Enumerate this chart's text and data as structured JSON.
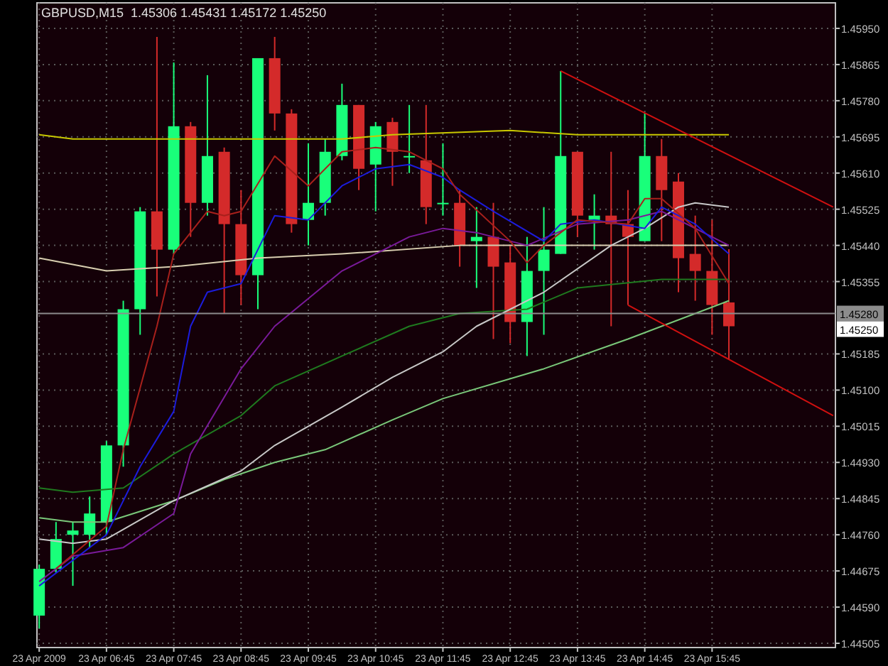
{
  "chart_data": {
    "type": "candlestick",
    "title": "GBPUSD,M15  1.45306 1.45431 1.45172 1.45250",
    "x": [
      "2009-04-23T05:45",
      "2009-04-23T06:00",
      "2009-04-23T06:15",
      "2009-04-23T06:30",
      "2009-04-23T06:45",
      "2009-04-23T07:00",
      "2009-04-23T07:15",
      "2009-04-23T07:30",
      "2009-04-23T07:45",
      "2009-04-23T08:00",
      "2009-04-23T08:15",
      "2009-04-23T08:30",
      "2009-04-23T08:45",
      "2009-04-23T09:00",
      "2009-04-23T09:15",
      "2009-04-23T09:30",
      "2009-04-23T09:45",
      "2009-04-23T10:00",
      "2009-04-23T10:15",
      "2009-04-23T10:30",
      "2009-04-23T10:45",
      "2009-04-23T11:00",
      "2009-04-23T11:15",
      "2009-04-23T11:30",
      "2009-04-23T11:45",
      "2009-04-23T12:00",
      "2009-04-23T12:15",
      "2009-04-23T12:30",
      "2009-04-23T12:45",
      "2009-04-23T13:00",
      "2009-04-23T13:15",
      "2009-04-23T13:30",
      "2009-04-23T13:45",
      "2009-04-23T14:00",
      "2009-04-23T14:15",
      "2009-04-23T14:30",
      "2009-04-23T14:45",
      "2009-04-23T15:00",
      "2009-04-23T15:15",
      "2009-04-23T15:30",
      "2009-04-23T15:45",
      "2009-04-23T16:00"
    ],
    "ohlc": [
      [
        1.4457,
        1.4469,
        1.4454,
        1.4468
      ],
      [
        1.4468,
        1.4479,
        1.4467,
        1.4475
      ],
      [
        1.4476,
        1.4479,
        1.4464,
        1.4477
      ],
      [
        1.4476,
        1.4485,
        1.4473,
        1.4481
      ],
      [
        1.4479,
        1.4498,
        1.4476,
        1.4497
      ],
      [
        1.4497,
        1.4531,
        1.4492,
        1.4529
      ],
      [
        1.4529,
        1.4553,
        1.4523,
        1.4552
      ],
      [
        1.4552,
        1.4593,
        1.4532,
        1.4543
      ],
      [
        1.4543,
        1.4587,
        1.4542,
        1.4572
      ],
      [
        1.4572,
        1.4573,
        1.4546,
        1.4554
      ],
      [
        1.4554,
        1.4584,
        1.4551,
        1.4565
      ],
      [
        1.4566,
        1.4567,
        1.4528,
        1.4549
      ],
      [
        1.4549,
        1.4557,
        1.453,
        1.4537
      ],
      [
        1.4537,
        1.4588,
        1.4529,
        1.4588
      ],
      [
        1.4588,
        1.4593,
        1.4571,
        1.4575
      ],
      [
        1.4575,
        1.4576,
        1.4547,
        1.4549
      ],
      [
        1.455,
        1.4568,
        1.4544,
        1.4554
      ],
      [
        1.4554,
        1.4569,
        1.4551,
        1.4566
      ],
      [
        1.4565,
        1.4582,
        1.4564,
        1.4577
      ],
      [
        1.4577,
        1.4577,
        1.4557,
        1.4562
      ],
      [
        1.4563,
        1.4573,
        1.4552,
        1.4572
      ],
      [
        1.4573,
        1.4574,
        1.4558,
        1.4566
      ],
      [
        1.4565,
        1.4577,
        1.4561,
        1.4565
      ],
      [
        1.4564,
        1.4577,
        1.4549,
        1.4553
      ],
      [
        1.4554,
        1.4568,
        1.4551,
        1.4554
      ],
      [
        1.4554,
        1.4557,
        1.4539,
        1.4544
      ],
      [
        1.4545,
        1.4553,
        1.4534,
        1.4546
      ],
      [
        1.4546,
        1.4554,
        1.4522,
        1.4539
      ],
      [
        1.454,
        1.4544,
        1.4521,
        1.4526
      ],
      [
        1.4526,
        1.4546,
        1.4518,
        1.4538
      ],
      [
        1.4538,
        1.4553,
        1.4523,
        1.4543
      ],
      [
        1.4542,
        1.4585,
        1.4542,
        1.4565
      ],
      [
        1.4566,
        1.4566,
        1.4546,
        1.4551
      ],
      [
        1.455,
        1.4556,
        1.4543,
        1.4551
      ],
      [
        1.4551,
        1.4566,
        1.4525,
        1.4549
      ],
      [
        1.4549,
        1.4557,
        1.453,
        1.4546
      ],
      [
        1.4545,
        1.4575,
        1.4545,
        1.4565
      ],
      [
        1.4565,
        1.4569,
        1.4545,
        1.4557
      ],
      [
        1.4559,
        1.4561,
        1.4533,
        1.4541
      ],
      [
        1.4542,
        1.4551,
        1.4531,
        1.4538
      ],
      [
        1.4538,
        1.455,
        1.4523,
        1.453
      ],
      [
        1.45306,
        1.45431,
        1.45172,
        1.4525
      ]
    ],
    "series": [
      {
        "type": "line",
        "color": "#c8c800",
        "x": [
          "2009-04-23T05:45",
          "2009-04-23T06:15",
          "2009-04-23T10:15",
          "2009-04-23T11:00",
          "2009-04-23T12:45",
          "2009-04-23T13:45",
          "2009-04-23T16:00"
        ],
        "values": [
          1.457,
          1.4569,
          1.4569,
          1.457,
          1.4571,
          1.457,
          1.457
        ]
      },
      {
        "type": "line",
        "color": "#d8ceb0",
        "x": [
          "2009-04-23T05:45",
          "2009-04-23T06:45",
          "2009-04-23T07:45",
          "2009-04-23T09:00",
          "2009-04-23T10:15",
          "2009-04-23T12:00",
          "2009-04-23T16:00"
        ],
        "values": [
          1.4541,
          1.4538,
          1.4539,
          1.4541,
          1.4542,
          1.4544,
          1.4544
        ]
      },
      {
        "type": "line",
        "color": "#7ac87a",
        "x": [
          "2009-04-23T05:45",
          "2009-04-23T06:15",
          "2009-04-23T06:45",
          "2009-04-23T07:45",
          "2009-04-23T08:30",
          "2009-04-23T09:15",
          "2009-04-23T10:00",
          "2009-04-23T11:00",
          "2009-04-23T11:45",
          "2009-04-23T13:15",
          "2009-04-23T14:30",
          "2009-04-23T15:00",
          "2009-04-23T16:00"
        ],
        "values": [
          1.448,
          1.4479,
          1.4479,
          1.4484,
          1.4489,
          1.4493,
          1.4496,
          1.4503,
          1.4508,
          1.4515,
          1.4522,
          1.4525,
          1.4531
        ]
      },
      {
        "type": "line",
        "color": "#1f7a1f",
        "x": [
          "2009-04-23T05:45",
          "2009-04-23T06:15",
          "2009-04-23T07:00",
          "2009-04-23T07:45",
          "2009-04-23T08:45",
          "2009-04-23T09:15",
          "2009-04-23T10:15",
          "2009-04-23T11:15",
          "2009-04-23T12:00",
          "2009-04-23T13:00",
          "2009-04-23T13:45",
          "2009-04-23T15:00",
          "2009-04-23T16:00"
        ],
        "values": [
          1.4487,
          1.4486,
          1.4487,
          1.4495,
          1.4504,
          1.4511,
          1.4518,
          1.4525,
          1.4528,
          1.4529,
          1.4534,
          1.4536,
          1.4536
        ]
      },
      {
        "type": "line",
        "color": "#c8c8c8",
        "x": [
          "2009-04-23T05:45",
          "2009-04-23T06:15",
          "2009-04-23T06:45",
          "2009-04-23T07:45",
          "2009-04-23T08:45",
          "2009-04-23T09:15",
          "2009-04-23T10:15",
          "2009-04-23T11:00",
          "2009-04-23T11:45",
          "2009-04-23T12:15",
          "2009-04-23T13:15",
          "2009-04-23T14:15",
          "2009-04-23T14:45",
          "2009-04-23T15:15",
          "2009-04-23T15:30",
          "2009-04-23T16:00"
        ],
        "values": [
          1.4475,
          1.4474,
          1.4475,
          1.4484,
          1.4491,
          1.4497,
          1.4506,
          1.4513,
          1.4519,
          1.4525,
          1.4533,
          1.4544,
          1.4548,
          1.4553,
          1.4554,
          1.4553
        ]
      },
      {
        "type": "line",
        "color": "#7a1a9a",
        "x": [
          "2009-04-23T05:45",
          "2009-04-23T06:15",
          "2009-04-23T07:00",
          "2009-04-23T07:45",
          "2009-04-23T08:00",
          "2009-04-23T08:45",
          "2009-04-23T09:15",
          "2009-04-23T10:15",
          "2009-04-23T11:15",
          "2009-04-23T11:45",
          "2009-04-23T12:15",
          "2009-04-23T13:00",
          "2009-04-23T13:45",
          "2009-04-23T14:30",
          "2009-04-23T15:00",
          "2009-04-23T16:00"
        ],
        "values": [
          1.4465,
          1.4471,
          1.4473,
          1.4481,
          1.4495,
          1.4515,
          1.4525,
          1.4538,
          1.4546,
          1.4548,
          1.4547,
          1.4544,
          1.4549,
          1.455,
          1.4552,
          1.4544
        ]
      },
      {
        "type": "line",
        "color": "#1c1cdc",
        "x": [
          "2009-04-23T05:45",
          "2009-04-23T06:45",
          "2009-04-23T07:15",
          "2009-04-23T07:45",
          "2009-04-23T08:00",
          "2009-04-23T08:15",
          "2009-04-23T08:45",
          "2009-04-23T09:15",
          "2009-04-23T09:45",
          "2009-04-23T10:15",
          "2009-04-23T10:45",
          "2009-04-23T11:15",
          "2009-04-23T11:45",
          "2009-04-23T12:00",
          "2009-04-23T12:30",
          "2009-04-23T13:15",
          "2009-04-23T13:30",
          "2009-04-23T14:00",
          "2009-04-23T14:45",
          "2009-04-23T15:00",
          "2009-04-23T15:30",
          "2009-04-23T16:00"
        ],
        "values": [
          1.4464,
          1.4476,
          1.4492,
          1.4505,
          1.4525,
          1.4533,
          1.4535,
          1.4551,
          1.455,
          1.4558,
          1.4562,
          1.4563,
          1.456,
          1.4557,
          1.4552,
          1.4545,
          1.4549,
          1.455,
          1.4548,
          1.4553,
          1.4549,
          1.4542
        ]
      },
      {
        "type": "line",
        "color": "#a8201c",
        "x": [
          "2009-04-23T06:00",
          "2009-04-23T06:45",
          "2009-04-23T07:00",
          "2009-04-23T07:30",
          "2009-04-23T07:45",
          "2009-04-23T08:15",
          "2009-04-23T08:30",
          "2009-04-23T08:45",
          "2009-04-23T09:15",
          "2009-04-23T09:45",
          "2009-04-23T10:00",
          "2009-04-23T10:15",
          "2009-04-23T10:45",
          "2009-04-23T11:15",
          "2009-04-23T11:45",
          "2009-04-23T12:00",
          "2009-04-23T12:45",
          "2009-04-23T13:00",
          "2009-04-23T13:15",
          "2009-04-23T13:45",
          "2009-04-23T14:30",
          "2009-04-23T14:45",
          "2009-04-23T15:00",
          "2009-04-23T15:30",
          "2009-04-23T16:00"
        ],
        "values": [
          1.4468,
          1.4478,
          1.4496,
          1.4525,
          1.4542,
          1.4552,
          1.4551,
          1.4552,
          1.4565,
          1.4558,
          1.4562,
          1.4566,
          1.4567,
          1.4566,
          1.4562,
          1.4556,
          1.4545,
          1.454,
          1.4544,
          1.455,
          1.4549,
          1.4555,
          1.4555,
          1.4548,
          1.4535
        ]
      },
      {
        "type": "line",
        "color": "#d01010",
        "x": [
          "2009-04-23T13:30",
          "2009-04-23T17:33"
        ],
        "values": [
          1.4585,
          1.4553
        ]
      },
      {
        "type": "line",
        "color": "#d01010",
        "x": [
          "2009-04-23T14:30",
          "2009-04-23T17:33"
        ],
        "values": [
          1.453,
          1.4504
        ]
      }
    ],
    "xlim": [
      "2009-04-23T05:43",
      "2009-04-23T17:35"
    ],
    "xticks": [
      {
        "value": "2009-04-23T05:45",
        "label": "23 Apr 2009"
      },
      {
        "value": "2009-04-23T06:45",
        "label": "23 Apr 06:45"
      },
      {
        "value": "2009-04-23T07:45",
        "label": "23 Apr 07:45"
      },
      {
        "value": "2009-04-23T08:45",
        "label": "23 Apr 08:45"
      },
      {
        "value": "2009-04-23T09:45",
        "label": "23 Apr 09:45"
      },
      {
        "value": "2009-04-23T10:45",
        "label": "23 Apr 10:45"
      },
      {
        "value": "2009-04-23T11:45",
        "label": "23 Apr 11:45"
      },
      {
        "value": "2009-04-23T12:45",
        "label": "23 Apr 12:45"
      },
      {
        "value": "2009-04-23T13:45",
        "label": "23 Apr 13:45"
      },
      {
        "value": "2009-04-23T14:45",
        "label": "23 Apr 14:45"
      },
      {
        "value": "2009-04-23T15:45",
        "label": "23 Apr 15:45"
      }
    ],
    "ylim": [
      1.44495,
      1.4601
    ],
    "yticks": [
      {
        "value": 1.4595,
        "label": "1.45950"
      },
      1.45865,
      {
        "value": 1.4578,
        "label": "1.45780"
      },
      1.45695,
      {
        "value": 1.4561,
        "label": "1.45610"
      },
      1.45525,
      {
        "value": 1.4544,
        "label": "1.45440"
      },
      1.45355,
      1.45185,
      {
        "value": 1.451,
        "label": "1.45100"
      },
      1.45015,
      {
        "value": 1.4493,
        "label": "1.44930"
      },
      1.44845,
      {
        "value": 1.4476,
        "label": "1.44760"
      },
      1.44675,
      {
        "value": 1.4459,
        "label": "1.44590"
      },
      1.44505
    ],
    "grid": true,
    "ref_lines": [
      {
        "axis": "y",
        "value": 1.4528,
        "label": "1.45280",
        "color": "#8c8c8c"
      }
    ],
    "annotations": [
      "1.45250"
    ]
  }
}
